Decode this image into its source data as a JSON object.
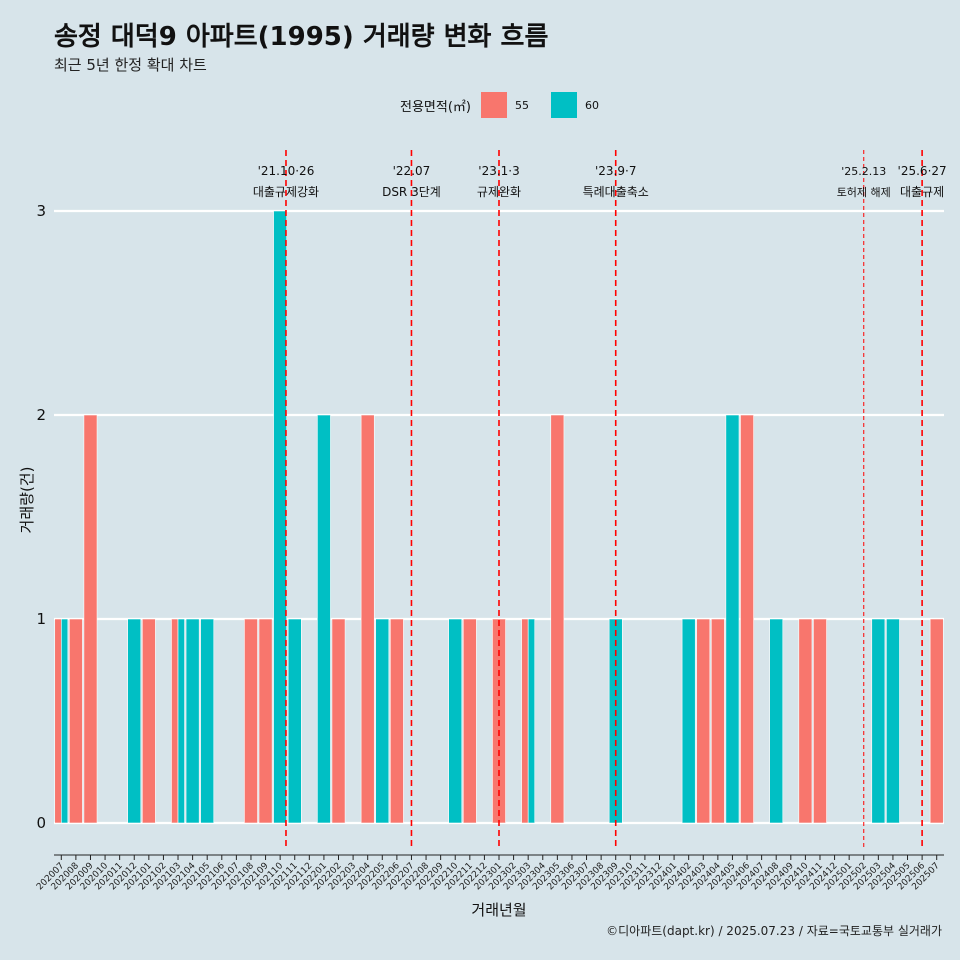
{
  "title": "송정 대덕9 아파트(1995) 거래량 변화 흐름",
  "subtitle": "최근 5년 한정 확대 차트",
  "caption": "©디아파트(dapt.kr) / 2025.07.23 / 자료=국토교통부 실거래가",
  "legend": {
    "title": "전용면적(㎡)",
    "items": [
      {
        "label": "55",
        "color": "#f8766d"
      },
      {
        "label": "60",
        "color": "#00bfc4"
      }
    ]
  },
  "chart_data": {
    "type": "bar",
    "title": "송정 대덕9 아파트(1995) 거래량 변화 흐름",
    "xlabel": "거래년월",
    "ylabel": "거래량(건)",
    "ylim": [
      0,
      3
    ],
    "yticks": [
      0,
      1,
      2,
      3
    ],
    "categories": [
      "202007",
      "202008",
      "202009",
      "202010",
      "202011",
      "202012",
      "202101",
      "202102",
      "202103",
      "202104",
      "202105",
      "202106",
      "202107",
      "202108",
      "202109",
      "202110",
      "202111",
      "202112",
      "202201",
      "202202",
      "202203",
      "202204",
      "202205",
      "202206",
      "202207",
      "202208",
      "202209",
      "202210",
      "202211",
      "202212",
      "202301",
      "202302",
      "202303",
      "202304",
      "202305",
      "202306",
      "202307",
      "202308",
      "202309",
      "202310",
      "202311",
      "202312",
      "202401",
      "202402",
      "202403",
      "202404",
      "202405",
      "202406",
      "202407",
      "202408",
      "202409",
      "202410",
      "202411",
      "202412",
      "202501",
      "202502",
      "202503",
      "202504",
      "202505",
      "202506",
      "202507"
    ],
    "series": [
      {
        "name": "55",
        "color": "#f8766d",
        "values": [
          1,
          1,
          2,
          0,
          0,
          0,
          1,
          0,
          1,
          0,
          0,
          0,
          0,
          1,
          1,
          0,
          0,
          0,
          0,
          1,
          0,
          2,
          0,
          1,
          0,
          0,
          0,
          0,
          1,
          0,
          1,
          0,
          1,
          0,
          2,
          0,
          0,
          0,
          0,
          0,
          0,
          0,
          0,
          0,
          1,
          1,
          0,
          2,
          0,
          0,
          0,
          1,
          1,
          0,
          0,
          0,
          0,
          0,
          0,
          0,
          1
        ]
      },
      {
        "name": "60",
        "color": "#00bfc4",
        "values": [
          1,
          0,
          0,
          0,
          0,
          1,
          0,
          0,
          1,
          1,
          1,
          0,
          0,
          0,
          0,
          3,
          1,
          0,
          2,
          0,
          0,
          0,
          1,
          0,
          0,
          0,
          0,
          1,
          0,
          0,
          0,
          0,
          1,
          0,
          0,
          0,
          0,
          0,
          1,
          0,
          0,
          0,
          0,
          1,
          0,
          0,
          2,
          0,
          0,
          1,
          0,
          0,
          0,
          0,
          0,
          0,
          1,
          1,
          0,
          0,
          0
        ]
      }
    ],
    "events": [
      {
        "date_line1": "'21.10·26",
        "date_line2": "대출규제강화",
        "month": "202110",
        "offset": 0.4,
        "style": "dashed"
      },
      {
        "date_line1": "'22.07",
        "date_line2": "DSR 3단계",
        "month": "202207",
        "offset": 0.0,
        "style": "dashed"
      },
      {
        "date_line1": "'23.1·3",
        "date_line2": "규제완화",
        "month": "202301",
        "offset": 0.0,
        "style": "dashed"
      },
      {
        "date_line1": "'23.9·7",
        "date_line2": "특례대출축소",
        "month": "202309",
        "offset": 0.0,
        "style": "dashed"
      },
      {
        "date_line1": "'25.2.13",
        "date_line2": "토허제 해제",
        "month": "202502",
        "offset": 0.0,
        "style": "thin",
        "small": true
      },
      {
        "date_line1": "'25.6·27",
        "date_line2": "대출규제",
        "month": "202506",
        "offset": 0.0,
        "style": "dashed"
      }
    ]
  }
}
